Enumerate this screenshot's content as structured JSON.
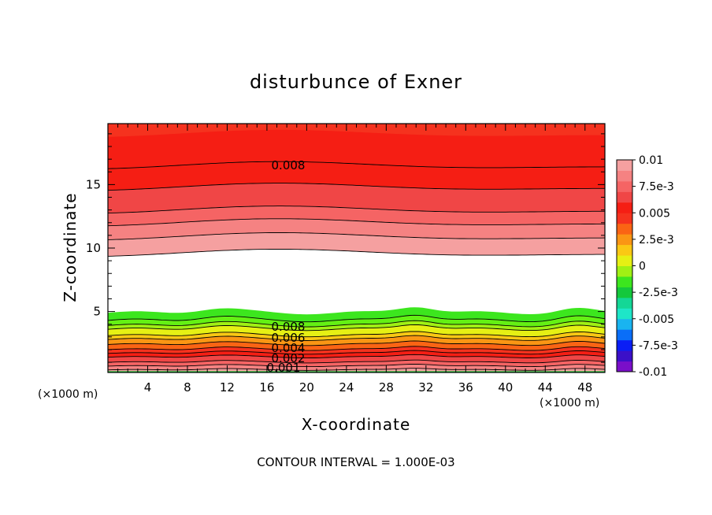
{
  "chart_data": {
    "type": "contour",
    "title": "disturbunce of Exner",
    "xlabel": "X-coordinate",
    "ylabel": "Z-coordinate",
    "x_unit_label": "(×1000 m)",
    "z_unit_label": "(×1000 m)",
    "xlim": [
      0,
      50
    ],
    "ylim": [
      0.2,
      19.8
    ],
    "x_ticks": [
      "4",
      "8",
      "12",
      "16",
      "20",
      "24",
      "28",
      "32",
      "36",
      "40",
      "44",
      "48"
    ],
    "y_ticks": [
      "5",
      "10",
      "15"
    ],
    "contour_interval_text": "CONTOUR INTERVAL = 1.000E-03",
    "contour_labels": [
      "0.008",
      "0.008",
      "0.006",
      "0.004",
      "0.002",
      "0.001"
    ],
    "colorbar": {
      "range": [
        -0.01,
        0.01
      ],
      "tick_labels": [
        "0.01",
        "7.5e-3",
        "0.005",
        "2.5e-3",
        "0",
        "-2.5e-3",
        "-0.005",
        "-7.5e-3",
        "-0.01"
      ],
      "colors": [
        "#7a0fc9",
        "#3b10c8",
        "#0a1ef5",
        "#0a6ef8",
        "#19b4f0",
        "#1ee6c8",
        "#14d796",
        "#14c83c",
        "#3ce61e",
        "#a0f014",
        "#e6f014",
        "#fac814",
        "#fa9614",
        "#fa6414",
        "#f5321e",
        "#f51e14",
        "#f04646",
        "#f56464",
        "#f58282",
        "#f5a0a0"
      ]
    },
    "band_colors_lower": [
      "#3ce61e",
      "#64f014",
      "#a0f014",
      "#e6f014",
      "#fac814",
      "#fa9614",
      "#fa6414",
      "#f5321e",
      "#f51e14",
      "#f04646",
      "#f56464",
      "#f58282",
      "#f5a0a0"
    ],
    "band_colors_upper": [
      "#f5a0a0",
      "#f58282",
      "#f56464",
      "#f04646",
      "#f51e14",
      "#f51e14",
      "#f5321e"
    ],
    "upper_contour_z": [
      9.6,
      10.9,
      12.0,
      13.0,
      14.8,
      16.5,
      19.0
    ],
    "lower_base_z": [
      0.4,
      0.7,
      1.0,
      1.4,
      1.7,
      2.0,
      2.4,
      2.8,
      3.1,
      3.6,
      3.9,
      4.3,
      4.9
    ]
  }
}
